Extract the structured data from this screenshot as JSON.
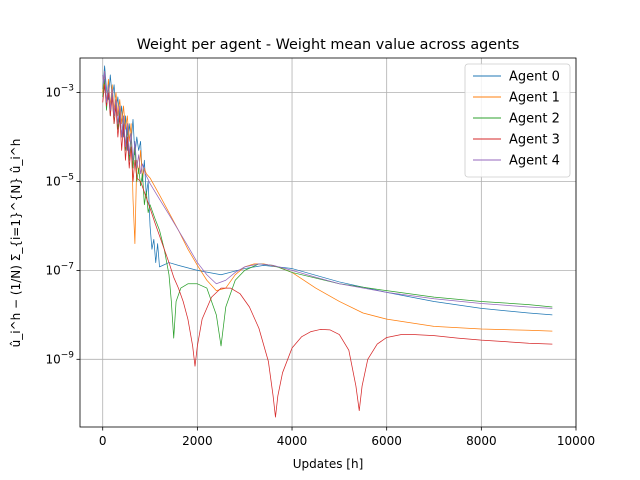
{
  "chart_data": {
    "type": "line",
    "title": "Weight per agent - Weight mean value across agents",
    "xlabel": "Updates [h]",
    "ylabel": "û_i^h − (1/N) Σ_{i=1}^{N} û_i^h",
    "x_scale": "linear",
    "y_scale": "log",
    "xlim": [
      -480,
      10000
    ],
    "ylim": [
      3e-11,
      0.006
    ],
    "x_ticks": [
      0,
      2000,
      4000,
      6000,
      8000,
      10000
    ],
    "x_tick_labels": [
      "0",
      "2000",
      "4000",
      "6000",
      "8000",
      "10000"
    ],
    "y_ticks": [
      1e-09,
      1e-07,
      1e-05,
      0.001
    ],
    "y_tick_labels": [
      "10−9",
      "10−7",
      "10−5",
      "10−3"
    ],
    "grid": true,
    "legend_position": "top-right",
    "series": [
      {
        "name": "Agent 0",
        "color": "#1f77b4",
        "points": [
          [
            0,
            0.0012
          ],
          [
            40,
            0.004
          ],
          [
            80,
            0.0012
          ],
          [
            120,
            0.0007
          ],
          [
            160,
            0.0025
          ],
          [
            200,
            0.0008
          ],
          [
            240,
            0.0015
          ],
          [
            280,
            0.0004
          ],
          [
            320,
            0.0008
          ],
          [
            360,
            0.00022
          ],
          [
            400,
            0.0005
          ],
          [
            440,
            0.0001
          ],
          [
            480,
            0.0003
          ],
          [
            520,
            5e-05
          ],
          [
            560,
            0.0002
          ],
          [
            600,
            8e-05
          ],
          [
            640,
            0.00025
          ],
          [
            680,
            4e-05
          ],
          [
            720,
            0.0001
          ],
          [
            760,
            5e-05
          ],
          [
            800,
            8e-05
          ],
          [
            840,
            1e-05
          ],
          [
            880,
            3e-05
          ],
          [
            920,
            5e-06
          ],
          [
            960,
            1e-05
          ],
          [
            1000,
            1e-06
          ],
          [
            1040,
            3e-07
          ],
          [
            1080,
            5e-07
          ],
          [
            1120,
            1.5e-07
          ],
          [
            1160,
            4e-07
          ],
          [
            1200,
            1.2e-07
          ],
          [
            1400,
            1.5e-07
          ],
          [
            1600,
            1.3e-07
          ],
          [
            2000,
            1e-07
          ],
          [
            2500,
            8e-08
          ],
          [
            3000,
            1.1e-07
          ],
          [
            3400,
            1.3e-07
          ],
          [
            4000,
            1.1e-07
          ],
          [
            5000,
            5.5e-08
          ],
          [
            6000,
            3.2e-08
          ],
          [
            7000,
            2e-08
          ],
          [
            8000,
            1.4e-08
          ],
          [
            9000,
            1.1e-08
          ],
          [
            9500,
            1e-08
          ]
        ]
      },
      {
        "name": "Agent 1",
        "color": "#ff7f0e",
        "points": [
          [
            0,
            0.001
          ],
          [
            40,
            0.003
          ],
          [
            80,
            0.0005
          ],
          [
            120,
            0.002
          ],
          [
            160,
            0.0005
          ],
          [
            200,
            0.0015
          ],
          [
            240,
            0.0004
          ],
          [
            280,
            0.001
          ],
          [
            320,
            0.0003
          ],
          [
            360,
            0.0007
          ],
          [
            400,
            0.0002
          ],
          [
            440,
            0.0005
          ],
          [
            480,
            0.00015
          ],
          [
            520,
            0.0003
          ],
          [
            560,
            8e-05
          ],
          [
            600,
            0.0002
          ],
          [
            640,
            4e-06
          ],
          [
            680,
            4e-07
          ],
          [
            720,
            3e-05
          ],
          [
            760,
            1.5e-05
          ],
          [
            800,
            5e-05
          ],
          [
            840,
            1.2e-05
          ],
          [
            880,
            2e-05
          ],
          [
            920,
            1.5e-05
          ],
          [
            1000,
            1.2e-05
          ],
          [
            1200,
            5e-06
          ],
          [
            1400,
            2e-06
          ],
          [
            1600,
            8e-07
          ],
          [
            1800,
            3e-07
          ],
          [
            2000,
            1.3e-07
          ],
          [
            2200,
            6e-08
          ],
          [
            2400,
            3.5e-08
          ],
          [
            2600,
            4e-08
          ],
          [
            2800,
            8e-08
          ],
          [
            3000,
            1.2e-07
          ],
          [
            3200,
            1.4e-07
          ],
          [
            3400,
            1.4e-07
          ],
          [
            3700,
            1.2e-07
          ],
          [
            4000,
            9e-08
          ],
          [
            4500,
            4e-08
          ],
          [
            5000,
            2e-08
          ],
          [
            5500,
            1.1e-08
          ],
          [
            6000,
            8e-09
          ],
          [
            7000,
            5.5e-09
          ],
          [
            8000,
            4.8e-09
          ],
          [
            9000,
            4.5e-09
          ],
          [
            9500,
            4.3e-09
          ]
        ]
      },
      {
        "name": "Agent 2",
        "color": "#2ca02c",
        "points": [
          [
            0,
            0.0008
          ],
          [
            40,
            0.002
          ],
          [
            80,
            0.0004
          ],
          [
            120,
            0.0015
          ],
          [
            160,
            0.0003
          ],
          [
            200,
            0.001
          ],
          [
            240,
            0.0002
          ],
          [
            280,
            0.0006
          ],
          [
            320,
            0.00015
          ],
          [
            360,
            0.0004
          ],
          [
            400,
            0.0001
          ],
          [
            440,
            0.0003
          ],
          [
            480,
            5e-05
          ],
          [
            520,
            0.00015
          ],
          [
            560,
            3e-05
          ],
          [
            600,
            0.0001
          ],
          [
            640,
            2e-05
          ],
          [
            680,
            6e-05
          ],
          [
            720,
            1e-05
          ],
          [
            760,
            2e-05
          ],
          [
            800,
            8e-06
          ],
          [
            840,
            1.5e-05
          ],
          [
            880,
            3e-06
          ],
          [
            920,
            6e-06
          ],
          [
            960,
            2e-06
          ],
          [
            1000,
            3e-06
          ],
          [
            1100,
            1.5e-06
          ],
          [
            1200,
            8e-07
          ],
          [
            1300,
            3e-07
          ],
          [
            1400,
            8e-08
          ],
          [
            1450,
            2e-08
          ],
          [
            1500,
            3e-09
          ],
          [
            1550,
            2e-08
          ],
          [
            1650,
            4e-08
          ],
          [
            1800,
            5e-08
          ],
          [
            2000,
            5e-08
          ],
          [
            2200,
            4e-08
          ],
          [
            2400,
            1e-08
          ],
          [
            2500,
            2e-09
          ],
          [
            2600,
            1.5e-08
          ],
          [
            2800,
            6e-08
          ],
          [
            3000,
            1e-07
          ],
          [
            3300,
            1.4e-07
          ],
          [
            3600,
            1.3e-07
          ],
          [
            4000,
            9e-08
          ],
          [
            5000,
            5e-08
          ],
          [
            6000,
            3.5e-08
          ],
          [
            7000,
            2.5e-08
          ],
          [
            8000,
            2e-08
          ],
          [
            9000,
            1.7e-08
          ],
          [
            9500,
            1.5e-08
          ]
        ]
      },
      {
        "name": "Agent 3",
        "color": "#d62728",
        "points": [
          [
            0,
            0.0006
          ],
          [
            40,
            0.0015
          ],
          [
            80,
            0.0005
          ],
          [
            120,
            0.001
          ],
          [
            160,
            0.0003
          ],
          [
            200,
            0.0008
          ],
          [
            240,
            0.0002
          ],
          [
            280,
            0.0005
          ],
          [
            320,
            0.0001
          ],
          [
            360,
            0.0003
          ],
          [
            400,
            5e-05
          ],
          [
            440,
            0.0002
          ],
          [
            480,
            3e-05
          ],
          [
            520,
            0.0001
          ],
          [
            560,
            2e-05
          ],
          [
            600,
            6e-05
          ],
          [
            640,
            1e-05
          ],
          [
            680,
            3e-05
          ],
          [
            720,
            1.2e-05
          ],
          [
            800,
            1e-05
          ],
          [
            900,
            5e-06
          ],
          [
            1000,
            2.5e-06
          ],
          [
            1100,
            1.2e-06
          ],
          [
            1200,
            6e-07
          ],
          [
            1300,
            3e-07
          ],
          [
            1400,
            1.5e-07
          ],
          [
            1500,
            7e-08
          ],
          [
            1600,
            4e-08
          ],
          [
            1700,
            2e-08
          ],
          [
            1800,
            8e-09
          ],
          [
            1900,
            2e-09
          ],
          [
            1950,
            7e-10
          ],
          [
            2000,
            2e-09
          ],
          [
            2100,
            8e-09
          ],
          [
            2300,
            2.5e-08
          ],
          [
            2500,
            4e-08
          ],
          [
            2700,
            4e-08
          ],
          [
            2900,
            3e-08
          ],
          [
            3100,
            1.5e-08
          ],
          [
            3300,
            5e-09
          ],
          [
            3500,
            9e-10
          ],
          [
            3600,
            1.5e-10
          ],
          [
            3650,
            5e-11
          ],
          [
            3700,
            1.5e-10
          ],
          [
            3800,
            5e-10
          ],
          [
            4000,
            1.8e-09
          ],
          [
            4200,
            3.2e-09
          ],
          [
            4400,
            4.2e-09
          ],
          [
            4600,
            4.7e-09
          ],
          [
            4800,
            4.6e-09
          ],
          [
            5000,
            3.6e-09
          ],
          [
            5200,
            1.6e-09
          ],
          [
            5350,
            2.5e-10
          ],
          [
            5420,
            7e-11
          ],
          [
            5480,
            2.5e-10
          ],
          [
            5600,
            1e-09
          ],
          [
            5800,
            2.2e-09
          ],
          [
            6000,
            3.1e-09
          ],
          [
            6300,
            3.6e-09
          ],
          [
            6600,
            3.6e-09
          ],
          [
            7000,
            3.4e-09
          ],
          [
            7500,
            3e-09
          ],
          [
            8000,
            2.7e-09
          ],
          [
            8500,
            2.5e-09
          ],
          [
            9000,
            2.3e-09
          ],
          [
            9500,
            2.2e-09
          ]
        ]
      },
      {
        "name": "Agent 4",
        "color": "#9467bd",
        "points": [
          [
            0,
            0.0025
          ],
          [
            20,
            0.0016
          ],
          [
            40,
            0.003
          ],
          [
            80,
            0.0006
          ],
          [
            120,
            0.0015
          ],
          [
            160,
            0.0004
          ],
          [
            200,
            0.0012
          ],
          [
            240,
            0.0003
          ],
          [
            280,
            0.0007
          ],
          [
            320,
            0.0002
          ],
          [
            360,
            0.0005
          ],
          [
            400,
            0.0001
          ],
          [
            440,
            0.0003
          ],
          [
            480,
            6e-05
          ],
          [
            520,
            0.0002
          ],
          [
            560,
            4e-05
          ],
          [
            600,
            0.00012
          ],
          [
            640,
            3e-05
          ],
          [
            680,
            8e-05
          ],
          [
            720,
            2e-05
          ],
          [
            760,
            4e-05
          ],
          [
            800,
            1.5e-05
          ],
          [
            840,
            2.5e-05
          ],
          [
            900,
            1.5e-05
          ],
          [
            1000,
            9e-06
          ],
          [
            1200,
            4e-06
          ],
          [
            1400,
            1.8e-06
          ],
          [
            1600,
            8e-07
          ],
          [
            1800,
            3.5e-07
          ],
          [
            2000,
            1.5e-07
          ],
          [
            2200,
            8e-08
          ],
          [
            2400,
            5e-08
          ],
          [
            2600,
            6e-08
          ],
          [
            2800,
            9e-08
          ],
          [
            3000,
            1.2e-07
          ],
          [
            3300,
            1.4e-07
          ],
          [
            3600,
            1.3e-07
          ],
          [
            4000,
            1e-07
          ],
          [
            4500,
            7e-08
          ],
          [
            5000,
            5e-08
          ],
          [
            6000,
            3.2e-08
          ],
          [
            7000,
            2.3e-08
          ],
          [
            8000,
            1.8e-08
          ],
          [
            9000,
            1.5e-08
          ],
          [
            9500,
            1.4e-08
          ]
        ]
      }
    ]
  }
}
